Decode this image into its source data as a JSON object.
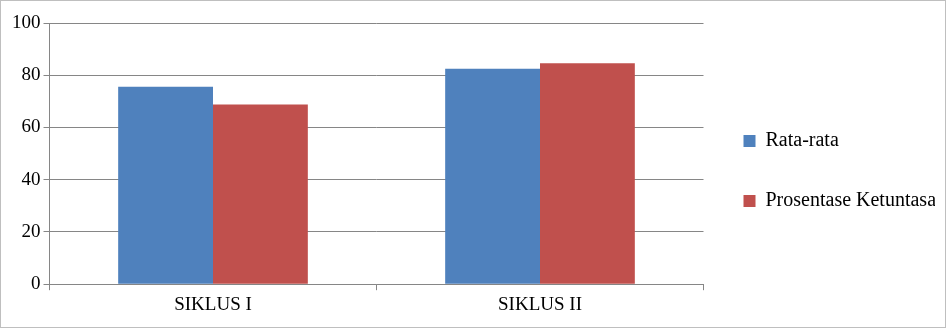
{
  "chart_data": {
    "type": "bar",
    "categories": [
      "SIKLUS I",
      "SIKLUS II"
    ],
    "series": [
      {
        "name": "Rata-rata",
        "color": "#4f81bd",
        "values": [
          75.6,
          82.5
        ]
      },
      {
        "name": "Prosentase Ketuntasan",
        "color": "#c0504d",
        "values": [
          68.8,
          84.6
        ]
      }
    ],
    "ylim": [
      0,
      100
    ],
    "yticks": [
      0,
      20,
      40,
      60,
      80,
      100
    ],
    "grid": true,
    "legend": "right"
  }
}
